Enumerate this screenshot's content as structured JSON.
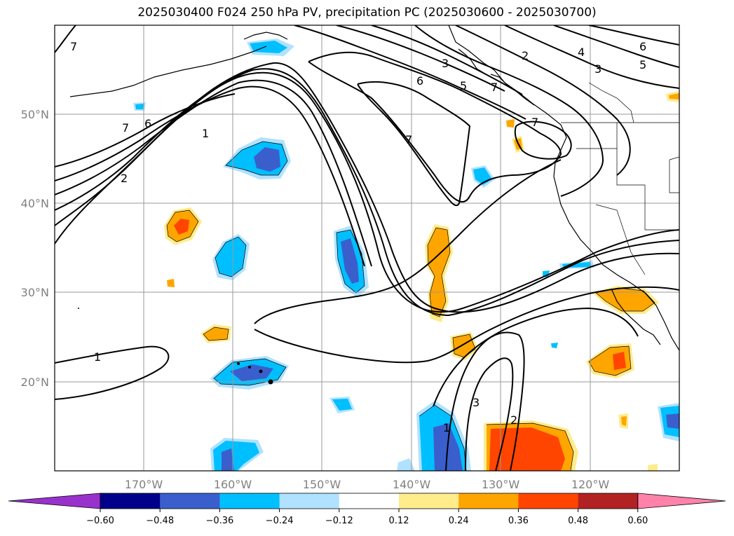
{
  "title": "2025030400 F024 250 hPa PV, precipitation PC (2025030600 - 2025030700)",
  "lon_ticks": [
    "170°W",
    "160°W",
    "150°W",
    "140°W",
    "130°W",
    "120°W"
  ],
  "lat_ticks": [
    "50°N",
    "40°N",
    "30°N",
    "20°N"
  ],
  "colorbar": {
    "labels": [
      "−0.60",
      "−0.48",
      "−0.36",
      "−0.24",
      "−0.12",
      "0.12",
      "0.24",
      "0.36",
      "0.48",
      "0.60"
    ],
    "colors": [
      "#9932cc",
      "#00008b",
      "#3a5fcd",
      "#00bfff",
      "#b0e2ff",
      "#ffffff",
      "#ffec8b",
      "#ffa500",
      "#ff4500",
      "#b22222",
      "#ff82ab"
    ]
  },
  "contour_labels": [
    "7",
    "6",
    "5",
    "4",
    "3",
    "2",
    "1"
  ],
  "precip_colors": {
    "neg_light": "#b0e2ff",
    "neg_mid": "#00bfff",
    "neg_strong": "#3a5fcd",
    "pos_light": "#ffec8b",
    "pos_mid": "#ffa500",
    "pos_strong": "#ff4500"
  }
}
